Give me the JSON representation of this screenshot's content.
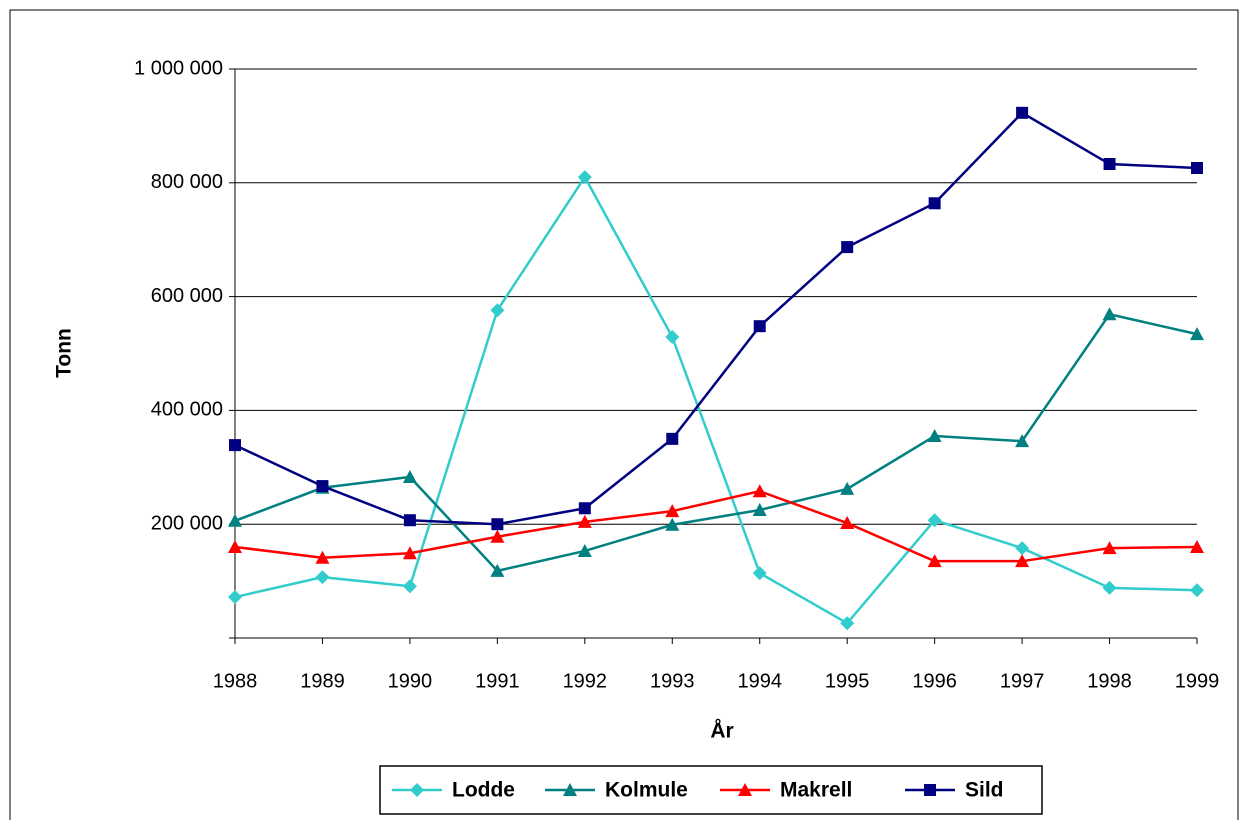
{
  "chart_data": {
    "type": "line",
    "x_label": "År",
    "y_label": "Tonn",
    "categories": [
      "1988",
      "1989",
      "1990",
      "1991",
      "1992",
      "1993",
      "1994",
      "1995",
      "1996",
      "1997",
      "1998",
      "1999"
    ],
    "series": [
      {
        "name": "Lodde",
        "color": "#33cccc",
        "marker": "diamond",
        "values": [
          72000,
          107000,
          91000,
          576000,
          810000,
          529000,
          114000,
          26000,
          207000,
          158000,
          88000,
          84000
        ]
      },
      {
        "name": "Kolmule",
        "color": "#008080",
        "marker": "triangle",
        "values": [
          206000,
          264000,
          283000,
          118000,
          153000,
          199000,
          225000,
          262000,
          355000,
          346000,
          569000,
          534000
        ]
      },
      {
        "name": "Makrell",
        "color": "#ff0000",
        "marker": "triangle",
        "values": [
          160000,
          141000,
          149000,
          178000,
          204000,
          223000,
          258000,
          202000,
          135000,
          135000,
          158000,
          160000
        ]
      },
      {
        "name": "Sild",
        "color": "#000080",
        "marker": "square",
        "values": [
          339000,
          267000,
          207000,
          200000,
          228000,
          350000,
          548000,
          687000,
          764000,
          923000,
          833000,
          826000
        ]
      }
    ],
    "ylim": [
      0,
      1000000
    ],
    "yticks": [
      {
        "value": 200000,
        "label": "200 000"
      },
      {
        "value": 400000,
        "label": "400 000"
      },
      {
        "value": 600000,
        "label": "600 000"
      },
      {
        "value": 800000,
        "label": "800 000"
      },
      {
        "value": 1000000,
        "label": "1 000 000"
      }
    ],
    "grid": true,
    "legend": "bottom"
  }
}
